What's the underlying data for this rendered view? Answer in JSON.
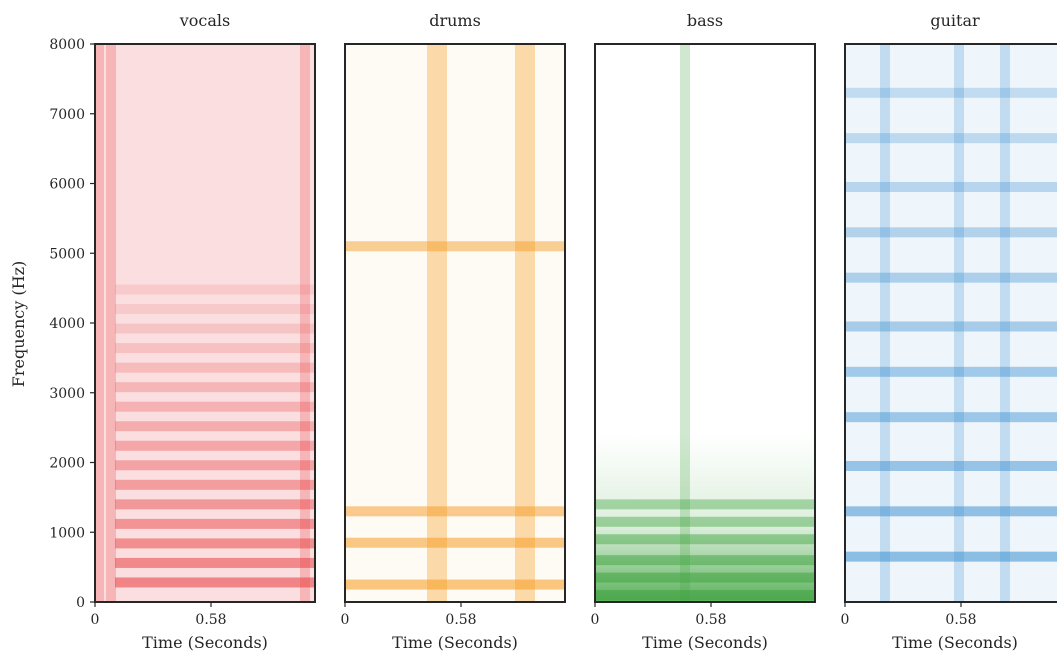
{
  "figure": {
    "ylabel": "Frequency (Hz)",
    "xlabel": "Time (Seconds)",
    "x_ticks": [
      "0",
      "0.58"
    ],
    "y_ticks": [
      "0",
      "1000",
      "2000",
      "3000",
      "4000",
      "5000",
      "6000",
      "7000",
      "8000"
    ]
  },
  "chart_data": [
    {
      "type": "heatmap",
      "title": "vocals",
      "color": "#e8393d",
      "xlabel": "Time (Seconds)",
      "ylabel": "Frequency (Hz)",
      "xlim": [
        0,
        1.1
      ],
      "ylim": [
        0,
        8000
      ],
      "bands_hz": [
        280,
        560,
        840,
        1120,
        1400,
        1680,
        1960,
        2240,
        2520,
        2800,
        3080,
        3360,
        3640,
        3920,
        4200,
        4480
      ],
      "vertical_events_s": [
        0.02,
        0.08,
        1.05
      ]
    },
    {
      "type": "heatmap",
      "title": "drums",
      "color": "#f59a1e",
      "xlabel": "Time (Seconds)",
      "ylabel": "",
      "xlim": [
        0,
        1.1
      ],
      "ylim": [
        0,
        8000
      ],
      "bands_hz": [
        250,
        850,
        1300,
        5100
      ],
      "vertical_events_s": [
        0.46,
        0.9
      ]
    },
    {
      "type": "heatmap",
      "title": "bass",
      "color": "#3fa33f",
      "xlabel": "Time (Seconds)",
      "ylabel": "",
      "xlim": [
        0,
        1.1
      ],
      "ylim": [
        0,
        8000
      ],
      "bands_hz": [
        100,
        350,
        600,
        900,
        1150,
        1400
      ],
      "vertical_events_s": [
        0.45
      ]
    },
    {
      "type": "heatmap",
      "title": "guitar",
      "color": "#3d8fd1",
      "xlabel": "Time (Seconds)",
      "ylabel": "",
      "xlim": [
        0,
        1.1
      ],
      "ylim": [
        0,
        8000
      ],
      "bands_hz": [
        650,
        1300,
        1950,
        2650,
        3300,
        3950,
        4650,
        5300,
        5950,
        6650,
        7300
      ],
      "vertical_events_s": [
        0.2,
        0.57,
        0.8
      ]
    }
  ]
}
